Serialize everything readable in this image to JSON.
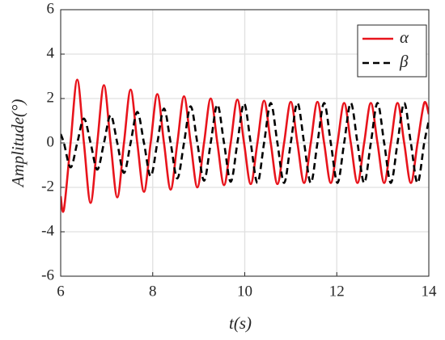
{
  "chart_data": {
    "type": "line",
    "xlabel": "t(s)",
    "ylabel": "Amplitude(°)",
    "x": [
      6,
      6.07,
      6.215,
      6.36,
      6.505,
      6.65,
      6.795,
      6.94,
      7.085,
      7.23,
      7.375,
      7.52,
      7.665,
      7.81,
      7.955,
      8.1,
      8.245,
      8.39,
      8.535,
      8.68,
      8.825,
      8.97,
      9.115,
      9.26,
      9.405,
      9.55,
      9.695,
      9.84,
      9.985,
      10.13,
      10.275,
      10.42,
      10.565,
      10.71,
      10.855,
      11.0,
      11.145,
      11.29,
      11.435,
      11.58,
      11.725,
      11.87,
      12.015,
      12.16,
      12.305,
      12.45,
      12.595,
      12.74,
      12.885,
      13.03,
      13.175,
      13.32,
      13.465,
      13.61,
      13.755,
      13.9,
      14
    ],
    "series": [
      {
        "name": "α",
        "color": "#e8141c",
        "dash": "solid",
        "values": [
          -2.4,
          -3.0,
          0,
          2.85,
          0,
          -2.7,
          0,
          2.6,
          0,
          -2.45,
          0,
          2.4,
          0,
          -2.2,
          0,
          2.2,
          0,
          -2.1,
          0,
          2.1,
          0,
          -2.0,
          0,
          2.0,
          0,
          -1.9,
          0,
          1.95,
          0,
          -1.85,
          0,
          1.9,
          0,
          -1.85,
          0,
          1.85,
          0,
          -1.8,
          0,
          1.85,
          0,
          -1.8,
          0,
          1.8,
          0,
          -1.8,
          0,
          1.8,
          0,
          -1.8,
          0,
          1.8,
          0,
          -1.8,
          0,
          1.8,
          1.3
        ]
      },
      {
        "name": "β",
        "color": "#000000",
        "dash": "dashed",
        "values": [
          0.4,
          0,
          -1.1,
          0,
          1.1,
          0,
          -1.2,
          0,
          1.25,
          0,
          -1.35,
          0,
          1.4,
          0,
          -1.5,
          0,
          1.55,
          0,
          -1.6,
          0,
          1.65,
          0,
          -1.7,
          0,
          1.72,
          0,
          -1.75,
          0,
          1.78,
          0,
          -1.8,
          0,
          1.8,
          0,
          -1.8,
          0,
          1.8,
          0,
          -1.8,
          0,
          1.8,
          0,
          -1.8,
          0,
          1.8,
          0,
          -1.8,
          0,
          1.8,
          0,
          -1.8,
          0,
          1.8,
          0,
          -1.8,
          0,
          1.0
        ]
      }
    ],
    "xlim": [
      6,
      14
    ],
    "xticks": [
      6,
      8,
      10,
      12,
      14
    ],
    "ylim": [
      -6,
      6
    ],
    "yticks": [
      -6,
      -4,
      -2,
      0,
      2,
      4,
      6
    ],
    "grid": true,
    "legend": "upper right"
  }
}
